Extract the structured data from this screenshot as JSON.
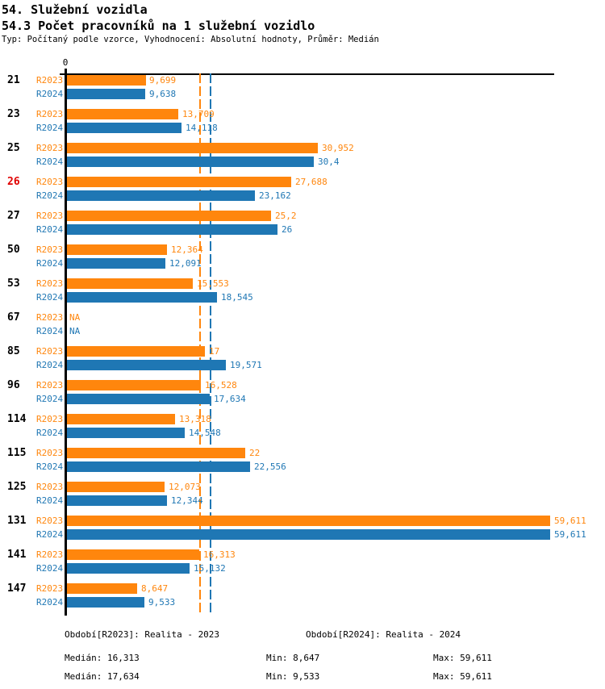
{
  "header": {
    "title1": "54. Služební vozidla",
    "title2": "54.3 Počet pracovníků na 1 služební vozidlo",
    "subtitle": "Typ: Počítaný podle vzorce, Vyhodnocení: Absolutní hodnoty, Průměr: Medián"
  },
  "colors": {
    "r2023": "#FF860D",
    "r2024": "#1F77B4",
    "highlight_category": "#E00000",
    "axis": "#000000"
  },
  "chart_data": {
    "type": "bar",
    "orientation": "horizontal",
    "title": "54.3 Počet pracovníků na 1 služební vozidlo",
    "x_origin_label": "0",
    "xlim": [
      0,
      60
    ],
    "grid": false,
    "series_names": [
      "R2023",
      "R2024"
    ],
    "highlighted_category": "26",
    "rows": [
      {
        "category": "21",
        "values": [
          9.699,
          9.638
        ],
        "labels": [
          "9,699",
          "9,638"
        ]
      },
      {
        "category": "23",
        "values": [
          13.709,
          14.118
        ],
        "labels": [
          "13,709",
          "14,118"
        ]
      },
      {
        "category": "25",
        "values": [
          30.952,
          30.4
        ],
        "labels": [
          "30,952",
          "30,4"
        ]
      },
      {
        "category": "26",
        "values": [
          27.688,
          23.162
        ],
        "labels": [
          "27,688",
          "23,162"
        ]
      },
      {
        "category": "27",
        "values": [
          25.2,
          26
        ],
        "labels": [
          "25,2",
          "26"
        ]
      },
      {
        "category": "50",
        "values": [
          12.364,
          12.091
        ],
        "labels": [
          "12,364",
          "12,091"
        ]
      },
      {
        "category": "53",
        "values": [
          15.553,
          18.545
        ],
        "labels": [
          "15,553",
          "18,545"
        ]
      },
      {
        "category": "67",
        "values": [
          null,
          null
        ],
        "labels": [
          "NA",
          "NA"
        ]
      },
      {
        "category": "85",
        "values": [
          17,
          19.571
        ],
        "labels": [
          "17",
          "19,571"
        ]
      },
      {
        "category": "96",
        "values": [
          16.528,
          17.634
        ],
        "labels": [
          "16,528",
          "17,634"
        ]
      },
      {
        "category": "114",
        "values": [
          13.318,
          14.548
        ],
        "labels": [
          "13,318",
          "14,548"
        ]
      },
      {
        "category": "115",
        "values": [
          22,
          22.556
        ],
        "labels": [
          "22",
          "22,556"
        ]
      },
      {
        "category": "125",
        "values": [
          12.073,
          12.344
        ],
        "labels": [
          "12,073",
          "12,344"
        ]
      },
      {
        "category": "131",
        "values": [
          59.611,
          59.611
        ],
        "labels": [
          "59,611",
          "59,611"
        ]
      },
      {
        "category": "141",
        "values": [
          16.313,
          15.132
        ],
        "labels": [
          "16,313",
          "15,132"
        ]
      },
      {
        "category": "147",
        "values": [
          8.647,
          9.533
        ],
        "labels": [
          "8,647",
          "9,533"
        ]
      }
    ],
    "medians": {
      "R2023": 16.313,
      "R2024": 17.634
    }
  },
  "footer": {
    "legend_r2023": "Období[R2023]: Realita - 2023",
    "legend_r2024": "Období[R2024]: Realita - 2024",
    "stats_r2023": {
      "median": "Medián: 16,313",
      "min": "Min: 8,647",
      "max": "Max: 59,611"
    },
    "stats_r2024": {
      "median": "Medián: 17,634",
      "min": "Min: 9,533",
      "max": "Max: 59,611"
    }
  }
}
